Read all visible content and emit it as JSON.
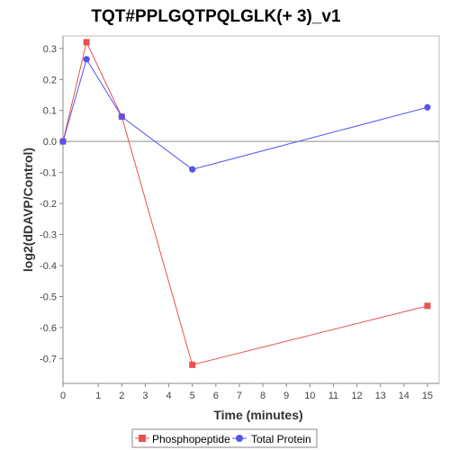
{
  "chart_data": {
    "type": "line",
    "title": "TQT#PPLGQTPQLGLK(+ 3)_v1",
    "xlabel": "Time (minutes)",
    "ylabel": "log2(dDAVP/Control)",
    "x_ticks": [
      "0",
      "1",
      "2",
      "3",
      "4",
      "5",
      "6",
      "7",
      "8",
      "9",
      "10",
      "11",
      "12",
      "13",
      "14",
      "15"
    ],
    "y_ticks": [
      "0.3",
      "0.2",
      "0.1",
      "0.0",
      "-0.1",
      "-0.2",
      "-0.3",
      "-0.4",
      "-0.5",
      "-0.6",
      "-0.7"
    ],
    "y_tick_values": [
      0.3,
      0.2,
      0.1,
      0.0,
      -0.1,
      -0.2,
      -0.3,
      -0.4,
      -0.5,
      -0.6,
      -0.7
    ],
    "ylim": [
      -0.78,
      0.34
    ],
    "grid": false,
    "zero_line": true,
    "legend_position": "bottom",
    "series": [
      {
        "name": "Phosphopeptide",
        "color": "#e8524f",
        "marker": "square",
        "x": [
          "0",
          "0.5",
          "2",
          "5",
          "15"
        ],
        "values": [
          0.0,
          0.32,
          0.08,
          -0.72,
          -0.53
        ]
      },
      {
        "name": "Total Protein",
        "color": "#5454f0",
        "marker": "circle",
        "x": [
          "0",
          "0.5",
          "2",
          "5",
          "15"
        ],
        "values": [
          0.0,
          0.265,
          0.08,
          -0.09,
          0.11
        ]
      }
    ]
  }
}
